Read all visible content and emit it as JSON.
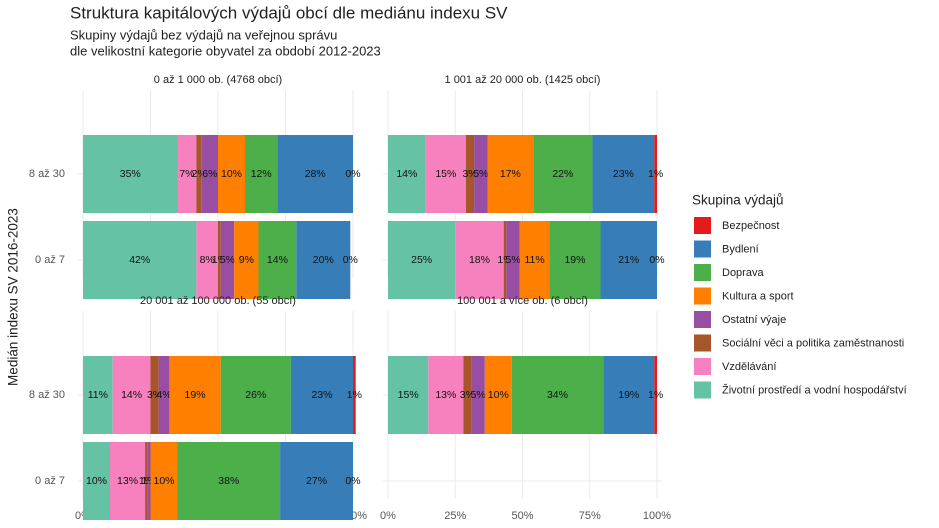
{
  "chart_data": {
    "type": "bar",
    "title": "Struktura kapitálových výdajů obcí dle mediánu indexu SV",
    "subtitle": [
      "Skupiny výdajů bez výdajů na veřejnou správu",
      "dle velikostní kategorie obyvatel za období 2012-2023"
    ],
    "y_label": "Medián indexu SV 2016-2023",
    "legend_title": "Skupina výdajů",
    "facets": [
      "0 až 1 000 ob. (4768 obcí)",
      "1 001 až 20 000 ob. (1425 obcí)",
      "20 001 až 100 000 ob. (55 obcí)",
      "100 001 a více ob. (6 obcí)"
    ],
    "categories": [
      "8 až 30",
      "0 až 7"
    ],
    "xlim": [
      0,
      100
    ],
    "xticks": [
      {
        "value": 0,
        "label": "0%"
      },
      {
        "value": 25,
        "label": "25%"
      },
      {
        "value": 50,
        "label": "50%"
      },
      {
        "value": 75,
        "label": "75%"
      },
      {
        "value": 100,
        "label": "100%"
      }
    ],
    "series": [
      {
        "name": "Bezpečnost",
        "color": "#e41a1c",
        "values": [
          [
            0,
            0
          ],
          [
            1,
            0
          ],
          [
            1,
            0
          ],
          [
            1,
            null
          ]
        ],
        "value_labels": [
          [
            "0%",
            "0%"
          ],
          [
            "1%",
            "0%"
          ],
          [
            "1%",
            "0%"
          ],
          [
            "1%",
            null
          ]
        ]
      },
      {
        "name": "Bydlení",
        "color": "#377eb8",
        "values": [
          [
            28,
            20
          ],
          [
            23,
            21
          ],
          [
            23,
            27
          ],
          [
            19,
            null
          ]
        ],
        "value_labels": [
          [
            "28%",
            "20%"
          ],
          [
            "23%",
            "21%"
          ],
          [
            "23%",
            "27%"
          ],
          [
            "19%",
            null
          ]
        ]
      },
      {
        "name": "Doprava",
        "color": "#4daf4a",
        "values": [
          [
            12,
            14
          ],
          [
            22,
            19
          ],
          [
            26,
            38
          ],
          [
            34,
            null
          ]
        ],
        "value_labels": [
          [
            "12%",
            "14%"
          ],
          [
            "22%",
            "19%"
          ],
          [
            "26%",
            "38%"
          ],
          [
            "34%",
            null
          ]
        ]
      },
      {
        "name": "Kultura a sport",
        "color": "#ff7f00",
        "values": [
          [
            10,
            9
          ],
          [
            17,
            11
          ],
          [
            19,
            10
          ],
          [
            10,
            null
          ]
        ],
        "value_labels": [
          [
            "10%",
            "9%"
          ],
          [
            "17%",
            "11%"
          ],
          [
            "19%",
            "10%"
          ],
          [
            "10%",
            null
          ]
        ]
      },
      {
        "name": "Ostatní výaje",
        "color": "#984ea3",
        "values": [
          [
            6,
            5
          ],
          [
            5,
            5
          ],
          [
            4,
            1
          ],
          [
            5,
            null
          ]
        ],
        "value_labels": [
          [
            "6%",
            "5%"
          ],
          [
            "5%",
            "5%"
          ],
          [
            "4%",
            "1%"
          ],
          [
            "5%",
            null
          ]
        ]
      },
      {
        "name": "Sociální věci a politika zaměstnanosti",
        "color": "#a65628",
        "values": [
          [
            2,
            1
          ],
          [
            3,
            1
          ],
          [
            3,
            1
          ],
          [
            3,
            null
          ]
        ],
        "value_labels": [
          [
            "2%",
            "1%"
          ],
          [
            "3%",
            "1%"
          ],
          [
            "3%",
            "1%"
          ],
          [
            "3%",
            null
          ]
        ]
      },
      {
        "name": "Vzdělávání",
        "color": "#f781bf",
        "values": [
          [
            7,
            8
          ],
          [
            15,
            18
          ],
          [
            14,
            13
          ],
          [
            13,
            null
          ]
        ],
        "value_labels": [
          [
            "7%",
            "8%"
          ],
          [
            "15%",
            "18%"
          ],
          [
            "14%",
            "13%"
          ],
          [
            "13%",
            null
          ]
        ]
      },
      {
        "name": "Životní prostředí a vodní hospodářství",
        "color": "#66c2a5",
        "values": [
          [
            35,
            42
          ],
          [
            14,
            25
          ],
          [
            11,
            10
          ],
          [
            15,
            null
          ]
        ],
        "value_labels": [
          [
            "35%",
            "42%"
          ],
          [
            "14%",
            "25%"
          ],
          [
            "11%",
            "10%"
          ],
          [
            "15%",
            null
          ]
        ]
      }
    ]
  }
}
